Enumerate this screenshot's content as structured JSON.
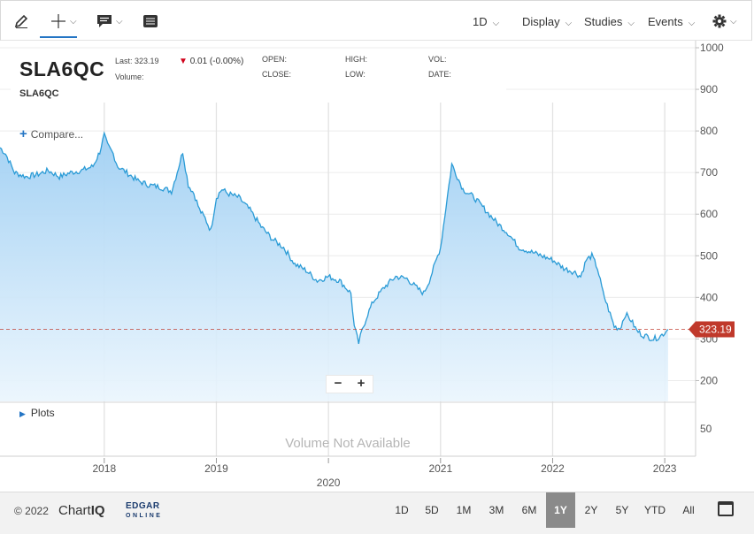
{
  "toolbar": {
    "left_icons": [
      "pencil-icon",
      "crosshair-icon",
      "comment-icon",
      "table-icon"
    ],
    "interval_label": "1D",
    "display_label": "Display",
    "studies_label": "Studies",
    "events_label": "Events",
    "settings_icon": "gear-icon"
  },
  "info": {
    "symbol": "SLA6QC",
    "symbol_small": "SLA6QC",
    "last_label": "Last: 323.19",
    "change": "0.01 (-0.00%)",
    "volume_label": "Volume:",
    "open_label": "OPEN:",
    "close_label": "CLOSE:",
    "high_label": "HIGH:",
    "low_label": "LOW:",
    "vol_label": "VOL:",
    "date_label": "DATE:"
  },
  "compare_label": "Compare...",
  "plots_label": "Plots",
  "volume_na": "Volume Not Available",
  "zoom": {
    "out": "−",
    "in": "+"
  },
  "colors": {
    "line": "#2a9bd6",
    "fill": "#b8dcf7",
    "price_tag": "#c0392b",
    "accent": "#2475c4"
  },
  "chart_data": {
    "type": "area",
    "last_price": "323.19",
    "ylim": [
      150,
      1000
    ],
    "y_ticks": [
      200,
      300,
      400,
      500,
      600,
      700,
      800,
      900,
      1000
    ],
    "y_tick_labels": [
      "200",
      "300",
      "400",
      "500",
      "600",
      "700",
      "800",
      "900",
      "1000"
    ],
    "volume_axis_tick": "50",
    "x_ticks": [
      "2018",
      "2019",
      "2020",
      "2021",
      "2022",
      "2023"
    ],
    "x_tick_dates": [
      2018.0,
      2019.0,
      2020.0,
      2021.0,
      2022.0,
      2023.0
    ],
    "xlim": [
      2017.07,
      2023.07
    ],
    "x": [
      2017.07,
      2017.12,
      2017.2,
      2017.3,
      2017.4,
      2017.5,
      2017.6,
      2017.7,
      2017.8,
      2017.9,
      2017.96,
      2018.0,
      2018.03,
      2018.08,
      2018.12,
      2018.2,
      2018.3,
      2018.4,
      2018.5,
      2018.6,
      2018.65,
      2018.7,
      2018.75,
      2018.8,
      2018.85,
      2018.9,
      2018.95,
      2019.0,
      2019.05,
      2019.1,
      2019.2,
      2019.3,
      2019.4,
      2019.5,
      2019.6,
      2019.7,
      2019.8,
      2019.9,
      2020.0,
      2020.1,
      2020.2,
      2020.23,
      2020.27,
      2020.3,
      2020.35,
      2020.4,
      2020.5,
      2020.6,
      2020.7,
      2020.8,
      2020.85,
      2020.9,
      2021.0,
      2021.05,
      2021.1,
      2021.15,
      2021.2,
      2021.25,
      2021.3,
      2021.4,
      2021.5,
      2021.6,
      2021.7,
      2021.8,
      2021.9,
      2022.0,
      2022.1,
      2022.2,
      2022.25,
      2022.3,
      2022.35,
      2022.4,
      2022.45,
      2022.5,
      2022.55,
      2022.6,
      2022.65,
      2022.7,
      2022.75,
      2022.8,
      2022.85,
      2022.9,
      2022.95,
      2023.0,
      2023.03
    ],
    "y": [
      760,
      745,
      700,
      690,
      695,
      705,
      690,
      700,
      705,
      715,
      750,
      790,
      765,
      745,
      715,
      700,
      680,
      670,
      665,
      655,
      700,
      750,
      670,
      650,
      610,
      590,
      560,
      640,
      660,
      650,
      640,
      610,
      570,
      540,
      520,
      480,
      465,
      440,
      450,
      440,
      410,
      330,
      290,
      320,
      360,
      390,
      425,
      450,
      445,
      420,
      410,
      440,
      520,
      620,
      720,
      690,
      660,
      650,
      640,
      610,
      580,
      555,
      520,
      510,
      500,
      490,
      470,
      460,
      450,
      490,
      500,
      470,
      410,
      370,
      330,
      325,
      360,
      345,
      320,
      310,
      305,
      300,
      305,
      315,
      323.19
    ]
  },
  "footer": {
    "copyright": "© 2022",
    "chartiq_a": "Chart",
    "chartiq_b": "IQ",
    "edgar": "EDGAR",
    "online": "ONLINE",
    "ranges": [
      "1D",
      "5D",
      "1M",
      "3M",
      "6M",
      "1Y",
      "2Y",
      "5Y",
      "YTD",
      "All"
    ],
    "active_range": "1Y",
    "calendar_icon": "calendar-icon"
  }
}
